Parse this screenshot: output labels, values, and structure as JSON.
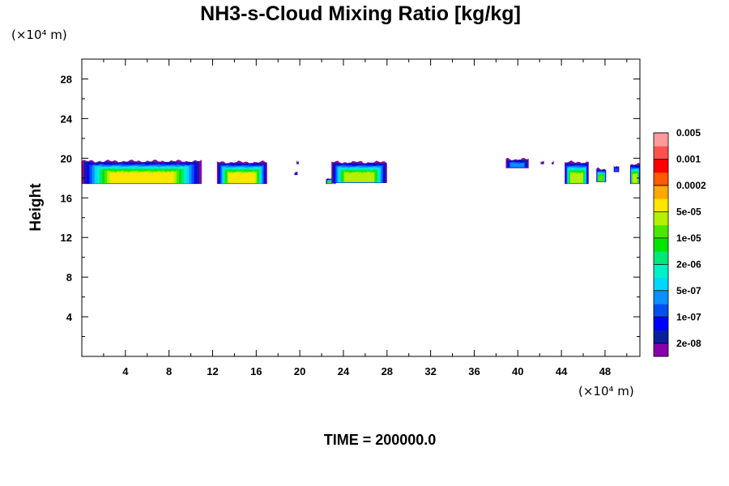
{
  "chart_data": {
    "type": "heatmap",
    "title": "NH3-s-Cloud Mixing Ratio [kg/kg]",
    "ylabel": "Height",
    "x_unit": "(×10⁴ m)",
    "y_unit": "(×10⁴ m)",
    "time_label": "TIME = 200000.0",
    "xlim": [
      0,
      51.2
    ],
    "ylim": [
      0,
      30
    ],
    "x_ticks": [
      {
        "value": 4,
        "label": "4"
      },
      {
        "value": 8,
        "label": "8"
      },
      {
        "value": 12,
        "label": "12"
      },
      {
        "value": 16,
        "label": "16"
      },
      {
        "value": 20,
        "label": "20"
      },
      {
        "value": 24,
        "label": "24"
      },
      {
        "value": 28,
        "label": "28"
      },
      {
        "value": 32,
        "label": "32"
      },
      {
        "value": 36,
        "label": "36"
      },
      {
        "value": 40,
        "label": "40"
      },
      {
        "value": 44,
        "label": "44"
      },
      {
        "value": 48,
        "label": "48"
      }
    ],
    "y_ticks": [
      {
        "value": 4,
        "label": "4"
      },
      {
        "value": 8,
        "label": "8"
      },
      {
        "value": 12,
        "label": "12"
      },
      {
        "value": 16,
        "label": "16"
      },
      {
        "value": 20,
        "label": "20"
      },
      {
        "value": 24,
        "label": "24"
      },
      {
        "value": 28,
        "label": "28"
      }
    ],
    "colorbar": {
      "colors": [
        "#8800aa",
        "#0a1fa0",
        "#0000ff",
        "#0050f0",
        "#0a90ff",
        "#00d8ff",
        "#00f0c8",
        "#00e878",
        "#00e600",
        "#4ae800",
        "#b4f000",
        "#ffe600",
        "#ffa800",
        "#ff5a00",
        "#ff0000",
        "#ff5050",
        "#ff9a9a"
      ],
      "labels": [
        "2e-08",
        "1e-07",
        "5e-07",
        "2e-06",
        "1e-05",
        "5e-05",
        "0.0002",
        "0.001",
        "0.005"
      ]
    },
    "cloud_regions": [
      {
        "x_start": 0.0,
        "x_end": 11.0,
        "y_bottom": 17.4,
        "y_top": 19.7,
        "max_level": 11
      },
      {
        "x_start": 12.4,
        "x_end": 17.0,
        "y_bottom": 17.4,
        "y_top": 19.6,
        "max_level": 11
      },
      {
        "x_start": 19.7,
        "x_end": 19.9,
        "y_bottom": 19.4,
        "y_top": 19.7,
        "max_level": 1
      },
      {
        "x_start": 19.5,
        "x_end": 19.8,
        "y_bottom": 18.3,
        "y_top": 18.6,
        "max_level": 2
      },
      {
        "x_start": 22.4,
        "x_end": 23.3,
        "y_bottom": 17.4,
        "y_top": 17.9,
        "max_level": 9
      },
      {
        "x_start": 22.9,
        "x_end": 28.0,
        "y_bottom": 17.5,
        "y_top": 19.6,
        "max_level": 10
      },
      {
        "x_start": 38.9,
        "x_end": 41.0,
        "y_bottom": 19.0,
        "y_top": 19.9,
        "max_level": 4
      },
      {
        "x_start": 42.1,
        "x_end": 42.4,
        "y_bottom": 19.4,
        "y_top": 19.7,
        "max_level": 1
      },
      {
        "x_start": 43.1,
        "x_end": 43.3,
        "y_bottom": 19.4,
        "y_top": 19.6,
        "max_level": 1
      },
      {
        "x_start": 44.3,
        "x_end": 46.5,
        "y_bottom": 17.4,
        "y_top": 19.6,
        "max_level": 10
      },
      {
        "x_start": 47.2,
        "x_end": 48.1,
        "y_bottom": 17.6,
        "y_top": 18.9,
        "max_level": 9
      },
      {
        "x_start": 48.8,
        "x_end": 49.3,
        "y_bottom": 18.6,
        "y_top": 19.2,
        "max_level": 3
      },
      {
        "x_start": 50.3,
        "x_end": 51.2,
        "y_bottom": 17.4,
        "y_top": 19.4,
        "max_level": 10
      }
    ]
  }
}
